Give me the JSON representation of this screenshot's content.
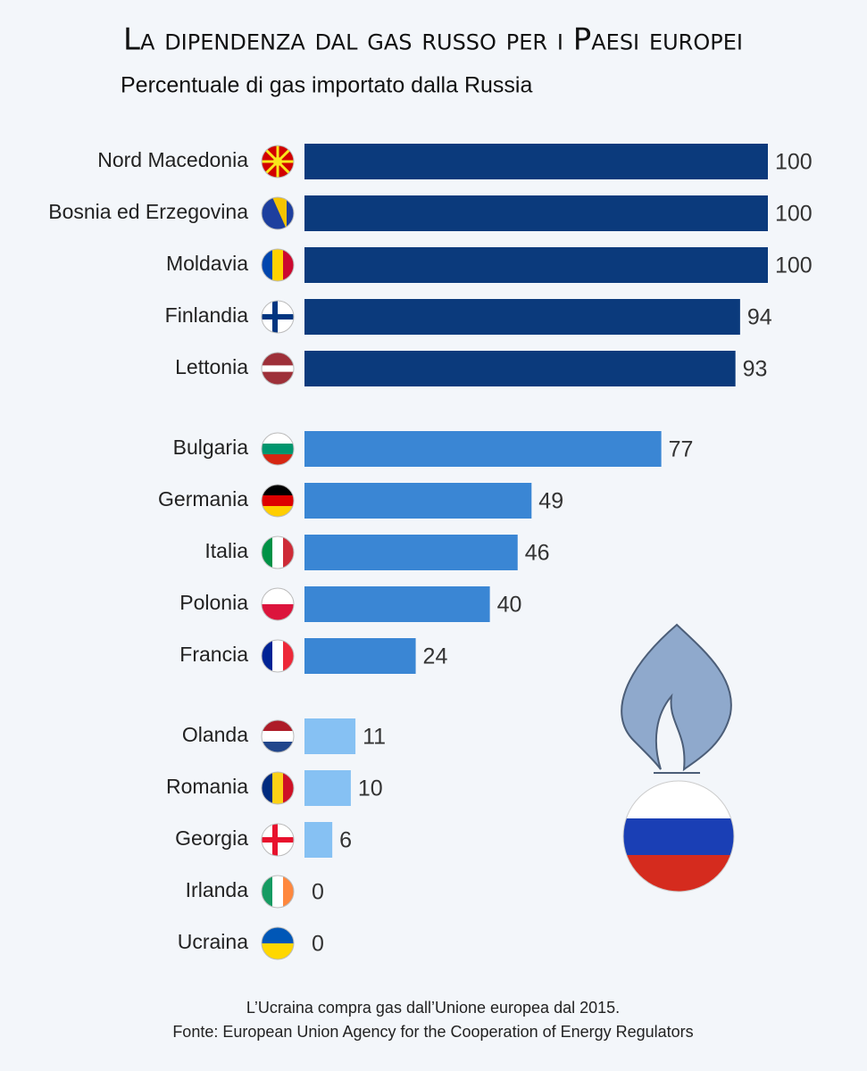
{
  "chart_data": {
    "type": "bar",
    "orientation": "horizontal",
    "title": "La dipendenza dal gas russo per i Paesi europei",
    "subtitle": "Percentuale di gas importato dalla Russia",
    "categories": [
      "Nord Macedonia",
      "Bosnia ed Erzegovina",
      "Moldavia",
      "Finlandia",
      "Lettonia",
      "Bulgaria",
      "Germania",
      "Italia",
      "Polonia",
      "Francia",
      "Olanda",
      "Romania",
      "Georgia",
      "Irlanda",
      "Ucraina"
    ],
    "values": [
      100,
      100,
      100,
      94,
      93,
      77,
      49,
      46,
      40,
      24,
      11,
      10,
      6,
      0,
      0
    ],
    "colors": [
      "#0b3a7c",
      "#0b3a7c",
      "#0b3a7c",
      "#0b3a7c",
      "#0b3a7c",
      "#3a86d4",
      "#3a86d4",
      "#3a86d4",
      "#3a86d4",
      "#3a86d4",
      "#86c1f3",
      "#86c1f3",
      "#86c1f3",
      "#86c1f3",
      "#86c1f3"
    ],
    "xlim": [
      0,
      100
    ],
    "notes": [
      "L’Ucraina compra gas dall’Unione europea dal 2015.",
      "Fonte: European Union Agency for the Cooperation of Energy Regulators"
    ]
  }
}
